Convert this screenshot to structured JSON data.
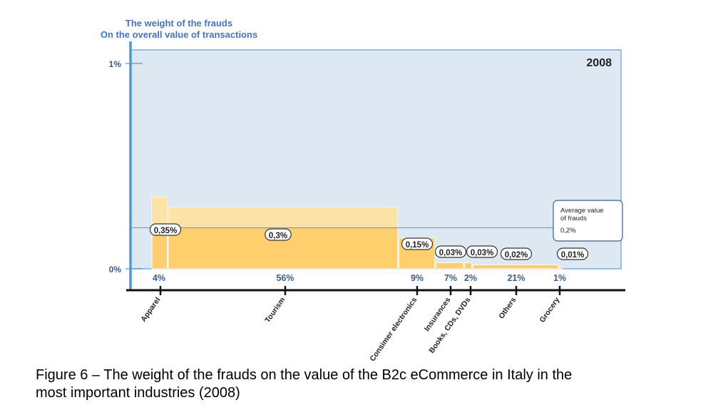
{
  "chart_data": {
    "type": "bar",
    "variant": "variable-width (marimekko)",
    "title_line1": "The weight of the frauds",
    "title_line2": "On the overall value of transactions",
    "year_label": "2008",
    "ylim": [
      0,
      1
    ],
    "y_ticks": [
      {
        "value": 0,
        "label": "0%"
      },
      {
        "value": 1,
        "label": "1%"
      }
    ],
    "average": {
      "value": 0.2,
      "box_title_line1": "Average value",
      "box_title_line2": "of frauds",
      "box_value": "0,2%"
    },
    "categories": [
      {
        "name": "Apparel",
        "share": 4,
        "share_label": "4%",
        "value": 0.35,
        "value_label": "0,35%"
      },
      {
        "name": "Tourism",
        "share": 56,
        "share_label": "56%",
        "value": 0.3,
        "value_label": "0,3%"
      },
      {
        "name": "Consimer electronics",
        "share": 9,
        "share_label": "9%",
        "value": 0.15,
        "value_label": "0,15%"
      },
      {
        "name": "Insurances",
        "share": 7,
        "share_label": "7%",
        "value": 0.03,
        "value_label": "0,03%"
      },
      {
        "name": "Books, CDs, DVDs",
        "share": 2,
        "share_label": "2%",
        "value": 0.03,
        "value_label": "0,03%"
      },
      {
        "name": "Others",
        "share": 21,
        "share_label": "21%",
        "value": 0.02,
        "value_label": "0,02%"
      },
      {
        "name": "Grocery",
        "share": 1,
        "share_label": "1%",
        "value": 0.01,
        "value_label": "0,01%"
      }
    ],
    "colors": {
      "bar": "#fecf6c",
      "bar_top": "#fde3a8",
      "plot_bg": "#dde8f2",
      "axis": "#4f97d7",
      "title": "#4473c4"
    }
  },
  "caption": {
    "line1": "Figure 6 – The weight of the frauds on the value of the B2c eCommerce in Italy in the",
    "line2": "most important industries (2008)"
  }
}
